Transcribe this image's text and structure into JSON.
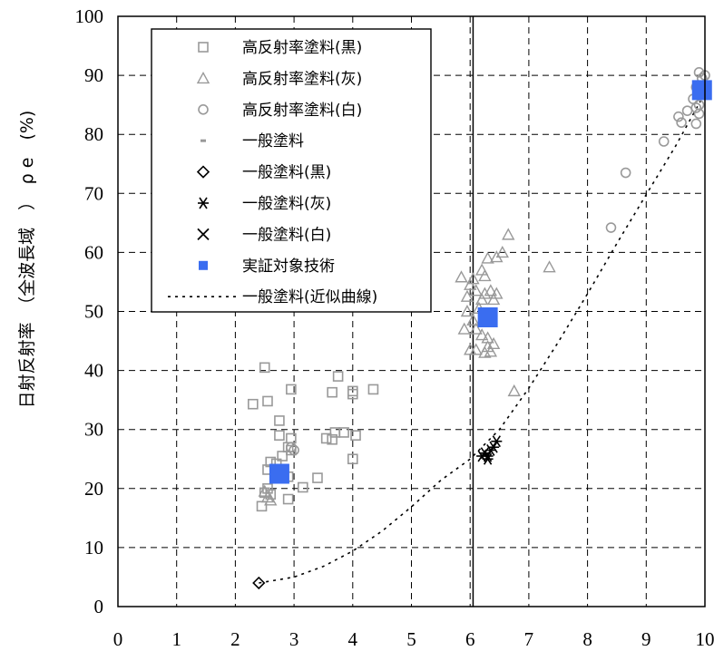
{
  "chart_data": {
    "type": "scatter",
    "title": "",
    "xlabel": "",
    "ylabel": "日射反射率　（全波長域　）　ρ e　(%)",
    "xlim": [
      0,
      10
    ],
    "ylim": [
      0,
      100
    ],
    "x_ticks": [
      "0",
      "1",
      "2",
      "3",
      "4",
      "5",
      "6",
      "7",
      "8",
      "9",
      "10"
    ],
    "y_ticks": [
      "0",
      "10",
      "20",
      "30",
      "40",
      "50",
      "60",
      "70",
      "80",
      "90",
      "100"
    ],
    "grid": true,
    "legend_position": "top-left",
    "vertical_line_x": 6.05,
    "colors": {
      "gray": "#999999",
      "black": "#000000",
      "blue": "#3a6df0"
    },
    "series": [
      {
        "name": "高反射率塗料(黒)",
        "marker": "square-open",
        "color": "#999999",
        "points": [
          [
            2.5,
            40.5
          ],
          [
            2.55,
            34.8
          ],
          [
            2.3,
            34.3
          ],
          [
            2.95,
            36.8
          ],
          [
            3.75,
            39.0
          ],
          [
            3.65,
            36.3
          ],
          [
            4.0,
            36.5
          ],
          [
            4.0,
            36.0
          ],
          [
            4.35,
            36.8
          ],
          [
            2.75,
            31.5
          ],
          [
            2.75,
            29.0
          ],
          [
            2.95,
            28.5
          ],
          [
            2.9,
            27.0
          ],
          [
            2.95,
            26.5
          ],
          [
            2.8,
            25.5
          ],
          [
            3.55,
            28.5
          ],
          [
            3.65,
            28.3
          ],
          [
            3.7,
            29.5
          ],
          [
            3.85,
            29.5
          ],
          [
            4.05,
            29.0
          ],
          [
            2.6,
            24.5
          ],
          [
            2.7,
            24.2
          ],
          [
            2.55,
            23.2
          ],
          [
            4.0,
            25.0
          ],
          [
            2.9,
            22.0
          ],
          [
            3.4,
            21.8
          ],
          [
            3.15,
            20.2
          ],
          [
            2.55,
            20.0
          ],
          [
            2.5,
            19.3
          ],
          [
            2.6,
            19.0
          ],
          [
            2.9,
            18.2
          ],
          [
            2.45,
            17.0
          ]
        ]
      },
      {
        "name": "高反射率塗料(灰)",
        "marker": "triangle-open",
        "color": "#999999",
        "points": [
          [
            6.65,
            63.0
          ],
          [
            6.55,
            60.0
          ],
          [
            6.3,
            59.0
          ],
          [
            6.45,
            59.2
          ],
          [
            6.2,
            57.0
          ],
          [
            6.05,
            55.5
          ],
          [
            5.85,
            55.8
          ],
          [
            7.35,
            57.5
          ],
          [
            6.25,
            56.0
          ],
          [
            6.0,
            54.5
          ],
          [
            6.1,
            53.5
          ],
          [
            6.25,
            53.0
          ],
          [
            6.35,
            53.5
          ],
          [
            6.45,
            53.0
          ],
          [
            6.4,
            52.0
          ],
          [
            5.95,
            52.5
          ],
          [
            6.2,
            52.0
          ],
          [
            6.15,
            50.5
          ],
          [
            5.95,
            50.0
          ],
          [
            6.05,
            48.5
          ],
          [
            6.1,
            47.0
          ],
          [
            6.2,
            46.0
          ],
          [
            6.3,
            45.5
          ],
          [
            5.9,
            47.0
          ],
          [
            6.4,
            44.5
          ],
          [
            6.1,
            43.5
          ],
          [
            6.25,
            43.0
          ],
          [
            6.35,
            43.2
          ],
          [
            6.0,
            43.5
          ],
          [
            6.3,
            44.0
          ],
          [
            6.75,
            36.5
          ],
          [
            2.55,
            18.5
          ],
          [
            2.6,
            18.0
          ],
          [
            2.5,
            19.5
          ]
        ]
      },
      {
        "name": "高反射率塗料(白)",
        "marker": "circle-open",
        "color": "#999999",
        "points": [
          [
            9.9,
            90.5
          ],
          [
            10.0,
            90.0
          ],
          [
            9.95,
            89.5
          ],
          [
            9.85,
            88.0
          ],
          [
            9.9,
            87.5
          ],
          [
            9.95,
            87.0
          ],
          [
            9.8,
            86.0
          ],
          [
            9.9,
            85.0
          ],
          [
            9.85,
            84.5
          ],
          [
            9.7,
            84.0
          ],
          [
            9.9,
            83.5
          ],
          [
            9.55,
            83.0
          ],
          [
            9.6,
            82.0
          ],
          [
            9.85,
            81.8
          ],
          [
            9.3,
            78.8
          ],
          [
            8.65,
            73.5
          ],
          [
            8.4,
            64.2
          ],
          [
            2.95,
            27.0
          ],
          [
            3.0,
            26.5
          ]
        ]
      },
      {
        "name": "一般塗料",
        "marker": "dash",
        "color": "#999999",
        "points": []
      },
      {
        "name": "一般塗料(黒)",
        "marker": "diamond-open",
        "color": "#000000",
        "points": [
          [
            2.4,
            4.0
          ]
        ]
      },
      {
        "name": "一般塗料(灰)",
        "marker": "asterisk",
        "color": "#000000",
        "points": [
          [
            6.2,
            25.5
          ],
          [
            6.25,
            26.0
          ],
          [
            6.3,
            25.0
          ],
          [
            6.35,
            26.5
          ],
          [
            6.4,
            27.0
          ],
          [
            6.45,
            28.0
          ],
          [
            6.3,
            25.5
          ]
        ]
      },
      {
        "name": "一般塗料(白)",
        "marker": "x",
        "color": "#000000",
        "points": []
      },
      {
        "name": "実証対象技術",
        "marker": "square-filled",
        "color": "#3a6df0",
        "points": [
          [
            2.75,
            22.5
          ],
          [
            6.3,
            49.0
          ],
          [
            9.95,
            87.5
          ]
        ]
      },
      {
        "name": "一般塗料(近似曲線)",
        "marker": "line-dotted",
        "color": "#000000",
        "points": [
          [
            2.4,
            4.0
          ],
          [
            3.0,
            5.0
          ],
          [
            3.5,
            6.8
          ],
          [
            4.0,
            9.4
          ],
          [
            4.5,
            12.8
          ],
          [
            5.0,
            16.9
          ],
          [
            5.5,
            21.4
          ],
          [
            6.0,
            25.0
          ],
          [
            6.5,
            30.0
          ],
          [
            7.0,
            37.0
          ],
          [
            7.5,
            44.8
          ],
          [
            8.0,
            53.0
          ],
          [
            8.5,
            61.5
          ],
          [
            9.0,
            69.8
          ],
          [
            9.5,
            78.0
          ],
          [
            10.0,
            87.0
          ]
        ]
      }
    ]
  }
}
